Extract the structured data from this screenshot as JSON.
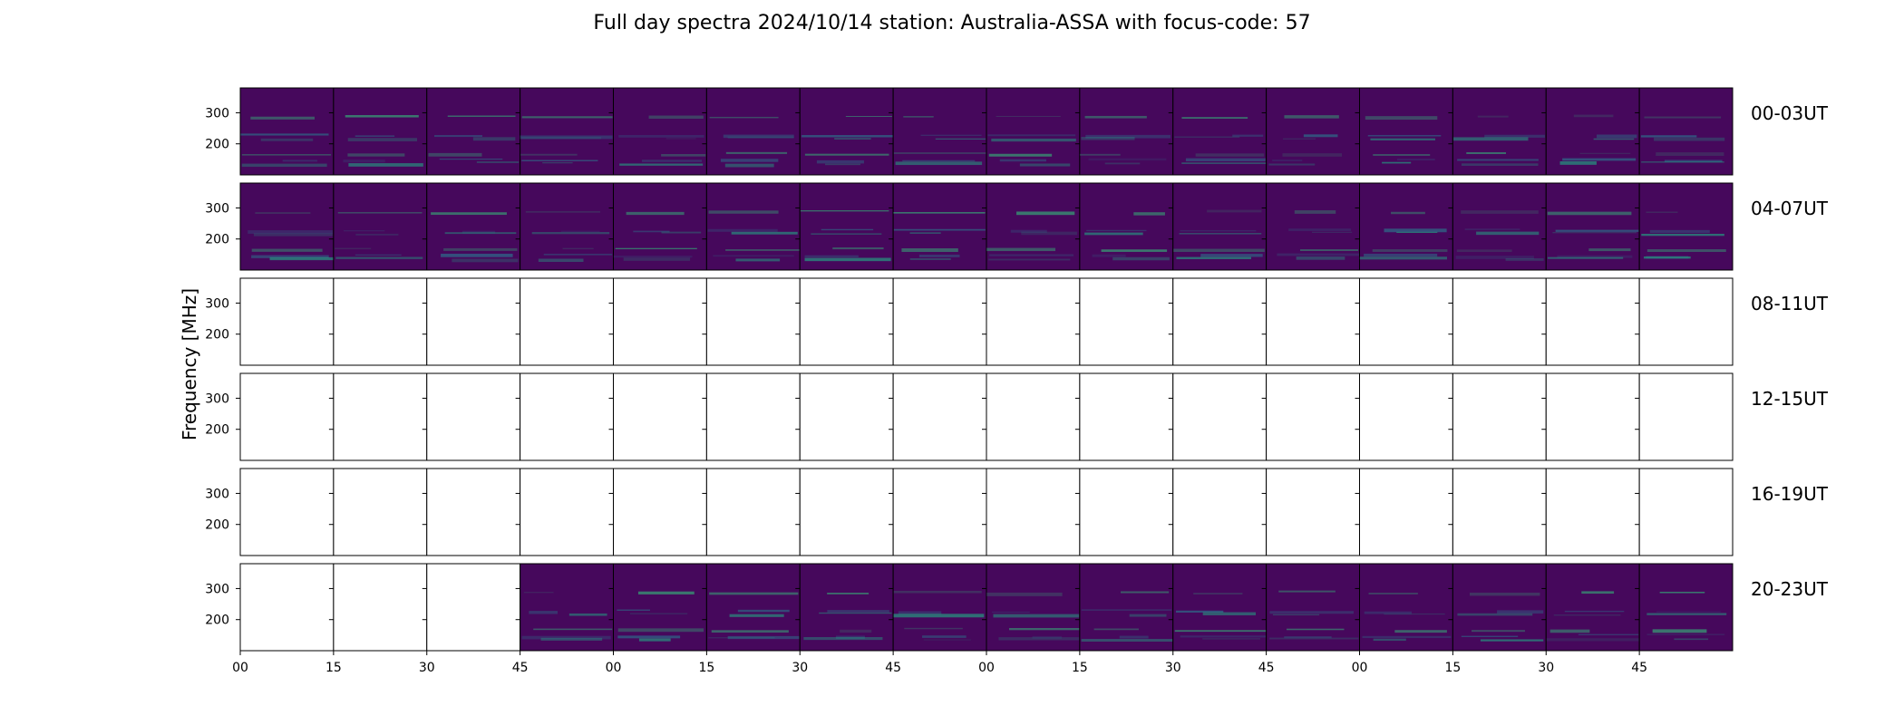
{
  "chart_data": {
    "type": "heatmap",
    "title": "Full day spectra 2024/10/14 station: Australia-ASSA with focus-code: 57",
    "ylabel": "Frequency [MHz]",
    "ylim": [
      100,
      380
    ],
    "yticks": [
      "300",
      "200"
    ],
    "xtick_labels": [
      "00",
      "15",
      "30",
      "45",
      "00",
      "15",
      "30",
      "45",
      "00",
      "15",
      "30",
      "45",
      "00",
      "15",
      "30",
      "45"
    ],
    "grid": false,
    "colormap": "viridis",
    "empty_color": "#ffffff",
    "rows": [
      {
        "label": "00-03UT",
        "data": [
          1,
          1,
          1,
          1,
          1,
          1,
          1,
          1,
          1,
          1,
          1,
          1,
          1,
          1,
          1,
          1
        ]
      },
      {
        "label": "04-07UT",
        "data": [
          1,
          1,
          1,
          1,
          1,
          1,
          1,
          1,
          1,
          1,
          1,
          1,
          1,
          1,
          1,
          1
        ]
      },
      {
        "label": "08-11UT",
        "data": [
          0,
          0,
          0,
          0,
          0,
          0,
          0,
          0,
          0,
          0,
          0,
          0,
          0,
          0,
          0,
          0
        ]
      },
      {
        "label": "12-15UT",
        "data": [
          0,
          0,
          0,
          0,
          0,
          0,
          0,
          0,
          0,
          0,
          0,
          0,
          0,
          0,
          0,
          0
        ]
      },
      {
        "label": "16-19UT",
        "data": [
          0,
          0,
          0,
          0,
          0,
          0,
          0,
          0,
          0,
          0,
          0,
          0,
          0,
          0,
          0,
          0
        ]
      },
      {
        "label": "20-23UT",
        "data": [
          0,
          0,
          0,
          1,
          1,
          1,
          1,
          1,
          1,
          1,
          1,
          1,
          1,
          1,
          1,
          1
        ]
      }
    ],
    "background_color": "#46085c",
    "line_colors": [
      "#2a788e",
      "#22a884",
      "#35b779"
    ]
  }
}
